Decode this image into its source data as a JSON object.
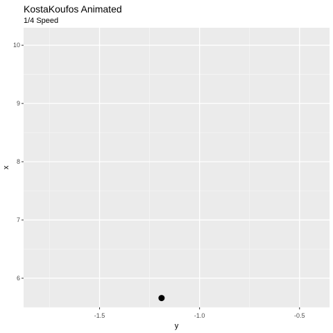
{
  "chart_data": {
    "type": "scatter",
    "title": "KostaKoufos Animated",
    "subtitle": "1/4 Speed",
    "xlabel": "y",
    "ylabel": "x",
    "xlim": [
      -1.88,
      -0.35
    ],
    "ylim": [
      5.5,
      10.3
    ],
    "x_ticks": [
      -1.5,
      -1.0,
      -0.5
    ],
    "x_tick_labels": [
      "-1.5",
      "-1.0",
      "-0.5"
    ],
    "y_ticks": [
      6,
      7,
      8,
      9,
      10
    ],
    "y_tick_labels": [
      "6",
      "7",
      "8",
      "9",
      "10"
    ],
    "points": [
      {
        "x": -1.19,
        "y": 5.66
      }
    ],
    "grid": true,
    "colors": {
      "panel_background": "#ebebeb",
      "grid_major": "#ffffff",
      "grid_minor": "#f5f5f5",
      "point": "#000000",
      "tick_mark": "#333333"
    }
  }
}
